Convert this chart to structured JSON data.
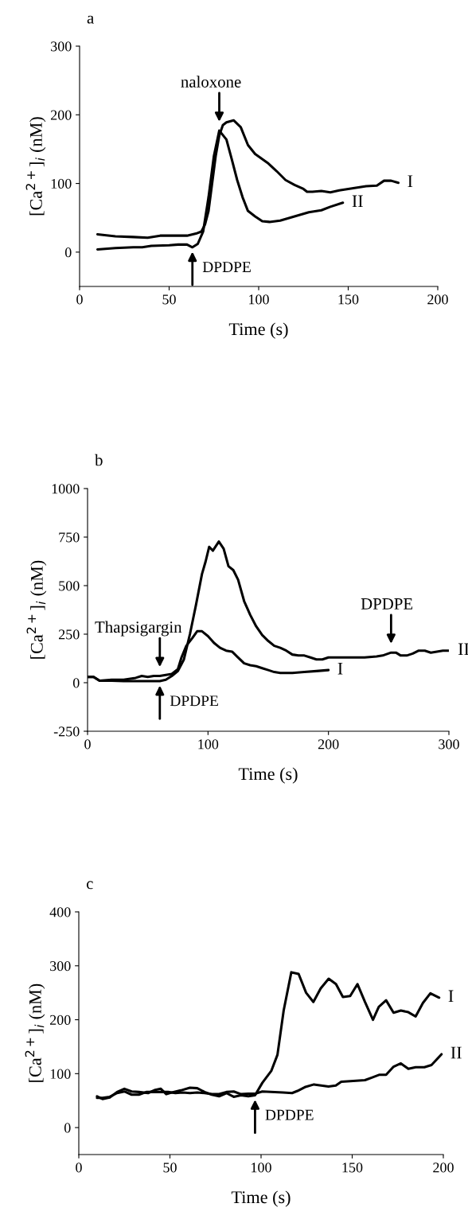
{
  "chart_data": [
    {
      "type": "line",
      "title": "a",
      "xlabel": "Time (s)",
      "ylabel": "[Ca$^{2+}$]$_{i}$ (nM)",
      "xlim": [
        0,
        200
      ],
      "ylim": [
        -50,
        300
      ],
      "xticks": [
        0,
        50,
        100,
        150,
        200
      ],
      "yticks": [
        0,
        100,
        200,
        300
      ],
      "series": [
        {
          "name": "I",
          "color": "#000000",
          "x": [
            10,
            20,
            30,
            38,
            45,
            50,
            60,
            65,
            68,
            70,
            72,
            74,
            76,
            78,
            80,
            82,
            86,
            90,
            94,
            98,
            105,
            110,
            115,
            120,
            125,
            127,
            130,
            135,
            140,
            145,
            150,
            160,
            166,
            170,
            174,
            178
          ],
          "values": [
            26,
            23,
            22,
            21,
            24,
            24,
            24,
            27,
            30,
            40,
            60,
            100,
            140,
            170,
            185,
            189,
            192,
            182,
            156,
            143,
            130,
            118,
            105,
            98,
            92,
            88,
            88,
            89,
            87,
            90,
            92,
            96,
            97,
            104,
            104,
            101
          ]
        },
        {
          "name": "II",
          "color": "#000000",
          "x": [
            10,
            20,
            30,
            35,
            40,
            50,
            55,
            60,
            63,
            66,
            69,
            72,
            75,
            78,
            82,
            85,
            88,
            91,
            94,
            98,
            102,
            106,
            112,
            120,
            128,
            135,
            140,
            147
          ],
          "values": [
            4,
            6,
            7,
            7,
            9,
            10,
            11,
            11,
            7,
            12,
            30,
            80,
            140,
            177,
            164,
            135,
            105,
            80,
            60,
            52,
            45,
            44,
            46,
            52,
            58,
            61,
            66,
            72
          ]
        }
      ],
      "annotations": [
        {
          "text": "DPDPE",
          "x": 63,
          "y": 7
        },
        {
          "text": "naloxone",
          "x": 78,
          "y": 177
        }
      ]
    },
    {
      "type": "line",
      "title": "b",
      "xlabel": "Time (s)",
      "ylabel": "[Ca$^{2+}$]$_{i}$ (nM)",
      "xlim": [
        0,
        300
      ],
      "ylim": [
        -250,
        1000
      ],
      "xticks": [
        0,
        100,
        200,
        300
      ],
      "yticks": [
        -250,
        0,
        250,
        500,
        750,
        1000
      ],
      "series": [
        {
          "name": "I",
          "color": "#000000",
          "x": [
            0,
            5,
            10,
            20,
            30,
            40,
            45,
            50,
            55,
            60,
            65,
            70,
            75,
            78,
            82,
            87,
            91,
            95,
            100,
            105,
            110,
            115,
            120,
            125,
            130,
            135,
            140,
            145,
            150,
            155,
            160,
            170,
            180,
            190,
            200
          ],
          "values": [
            30,
            30,
            10,
            15,
            15,
            25,
            35,
            30,
            35,
            35,
            40,
            45,
            70,
            130,
            190,
            230,
            265,
            265,
            240,
            205,
            180,
            165,
            160,
            130,
            100,
            90,
            85,
            75,
            65,
            55,
            50,
            50,
            55,
            60,
            65
          ]
        },
        {
          "name": "II",
          "color": "#000000",
          "x": [
            0,
            5,
            10,
            20,
            30,
            40,
            50,
            60,
            65,
            70,
            75,
            80,
            85,
            90,
            95,
            98,
            101,
            104,
            109,
            113,
            117,
            121,
            125,
            130,
            135,
            140,
            145,
            150,
            155,
            160,
            165,
            170,
            175,
            180,
            185,
            190,
            195,
            200,
            210,
            220,
            230,
            240,
            245,
            252,
            256,
            260,
            265,
            270,
            275,
            280,
            285,
            290,
            295,
            300
          ],
          "values": [
            30,
            30,
            10,
            10,
            8,
            8,
            8,
            8,
            15,
            35,
            60,
            120,
            250,
            400,
            560,
            624,
            700,
            680,
            727,
            690,
            600,
            580,
            530,
            420,
            350,
            290,
            245,
            215,
            190,
            180,
            165,
            145,
            140,
            140,
            130,
            120,
            120,
            130,
            130,
            130,
            130,
            135,
            140,
            155,
            155,
            140,
            140,
            150,
            165,
            165,
            155,
            160,
            165,
            165
          ]
        }
      ],
      "annotations": [
        {
          "text": "Thapsigargin",
          "x": 60,
          "y": 35
        },
        {
          "text": "DPDPE",
          "x": 60,
          "y": 8
        },
        {
          "text": "DPDPE",
          "x": 252,
          "y": 155
        }
      ]
    },
    {
      "type": "line",
      "title": "c",
      "xlabel": "Time (s)",
      "ylabel": "[Ca$^{2+}$]$_{i}$ (nM)",
      "xlim": [
        0,
        200
      ],
      "ylim": [
        -50,
        400
      ],
      "xticks": [
        0,
        50,
        100,
        150,
        200
      ],
      "yticks": [
        0,
        100,
        200,
        300,
        400
      ],
      "series": [
        {
          "name": "I",
          "color": "#000000",
          "x": [
            10,
            13,
            17,
            21,
            25,
            29,
            33,
            38,
            42,
            45,
            48,
            52,
            56,
            61,
            65,
            69,
            73,
            77,
            81,
            85,
            89,
            93,
            96.7,
            100.7,
            105.6,
            109,
            112.4,
            116.6,
            120.6,
            124.7,
            128.7,
            132.7,
            137.1,
            141.1,
            144.9,
            148.9,
            152.9,
            157,
            161.4,
            164.6,
            168.6,
            172.7,
            176.7,
            180.8,
            184.8,
            188.8,
            192.9,
            197.7
          ],
          "values": [
            58,
            53,
            56,
            66,
            72,
            67,
            66,
            64,
            70,
            72,
            62,
            66,
            69,
            74,
            73,
            66,
            61,
            58,
            64,
            57,
            60,
            58,
            60,
            83,
            105,
            135,
            217,
            288,
            285,
            250,
            233,
            258,
            276,
            266,
            242,
            244,
            266,
            233,
            200,
            224,
            236,
            213,
            217,
            214,
            206,
            231,
            249,
            241
          ]
        },
        {
          "name": "II",
          "color": "#000000",
          "x": [
            10,
            13,
            17,
            21,
            25,
            29,
            33,
            37,
            41,
            45,
            49,
            53,
            57,
            61,
            65,
            69,
            73,
            77,
            81,
            85,
            89,
            93,
            97,
            100.7,
            112,
            117,
            120,
            124,
            129,
            133,
            137,
            141,
            144,
            149,
            157,
            161,
            165,
            168.6,
            172.7,
            176.7,
            180.8,
            184.8,
            189.6,
            193.5,
            199
          ],
          "values": [
            55,
            55,
            57,
            64,
            67,
            61,
            61,
            66,
            66,
            66,
            66,
            64,
            65,
            64,
            65,
            64,
            62,
            62,
            66,
            67,
            62,
            63,
            63,
            67,
            65,
            64,
            68,
            75,
            80,
            78,
            76,
            78,
            85,
            86,
            88,
            93,
            98,
            98,
            113,
            119,
            109,
            112,
            112,
            116,
            136
          ]
        }
      ],
      "annotations": [
        {
          "text": "DPDPE",
          "x": 96.7,
          "y": 60
        }
      ]
    }
  ]
}
